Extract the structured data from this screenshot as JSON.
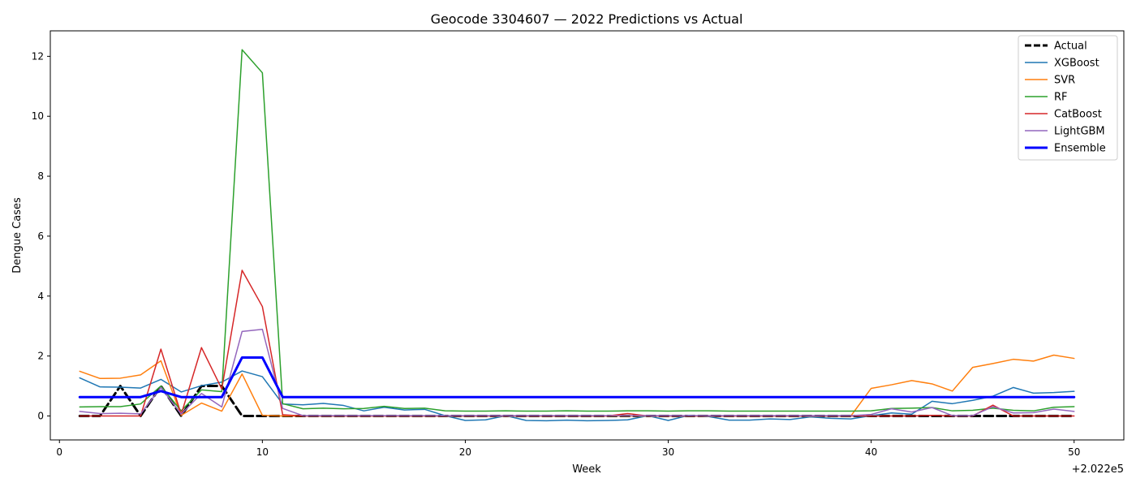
{
  "chart_data": {
    "type": "line",
    "title": "Geocode 3304607 — 2022 Predictions vs Actual",
    "xlabel": "Week",
    "ylabel": "Dengue Cases",
    "xlim": [
      -0.45,
      52.45
    ],
    "ylim": [
      -0.8,
      12.85
    ],
    "x_offset_label": "+2.022e5",
    "x_ticks": [
      0,
      10,
      20,
      30,
      40,
      50
    ],
    "y_ticks": [
      0,
      2,
      4,
      6,
      8,
      10,
      12
    ],
    "legend_position": "top-right",
    "grid": false,
    "x": [
      1,
      2,
      3,
      4,
      5,
      6,
      7,
      8,
      9,
      10,
      11,
      12,
      13,
      14,
      15,
      16,
      17,
      18,
      19,
      20,
      21,
      22,
      23,
      24,
      25,
      26,
      27,
      28,
      29,
      30,
      31,
      32,
      33,
      34,
      35,
      36,
      37,
      38,
      39,
      40,
      41,
      42,
      43,
      44,
      45,
      46,
      47,
      48,
      49,
      50
    ],
    "series": [
      {
        "name": "Actual",
        "color": "#000000",
        "style": "dashed",
        "width": 3,
        "values": [
          0,
          0,
          1,
          0,
          1,
          0,
          1,
          1,
          0,
          0,
          0,
          0,
          0,
          0,
          0,
          0,
          0,
          0,
          0,
          0,
          0,
          0,
          0,
          0,
          0,
          0,
          0,
          0,
          0,
          0,
          0,
          0,
          0,
          0,
          0,
          0,
          0,
          0,
          0,
          0,
          0,
          0,
          0,
          0,
          0,
          0,
          0,
          0,
          0,
          0
        ]
      },
      {
        "name": "XGBoost",
        "color": "#1f77b4",
        "style": "solid",
        "width": 1.5,
        "values": [
          1.27,
          0.97,
          0.96,
          0.93,
          1.22,
          0.8,
          1.01,
          1.13,
          1.5,
          1.31,
          0.4,
          0.37,
          0.42,
          0.35,
          0.17,
          0.29,
          0.2,
          0.22,
          0.01,
          -0.15,
          -0.13,
          0.01,
          -0.15,
          -0.16,
          -0.14,
          -0.16,
          -0.15,
          -0.13,
          0.01,
          -0.15,
          0.02,
          -0.02,
          -0.14,
          -0.14,
          -0.1,
          -0.12,
          -0.03,
          -0.08,
          -0.1,
          0.01,
          0.1,
          0.06,
          0.49,
          0.41,
          0.52,
          0.66,
          0.95,
          0.76,
          0.78,
          0.82
        ]
      },
      {
        "name": "SVR",
        "color": "#ff7f0e",
        "style": "solid",
        "width": 1.5,
        "values": [
          1.49,
          1.25,
          1.26,
          1.37,
          1.84,
          0.02,
          0.43,
          0.16,
          1.4,
          0.02,
          0.0,
          0.0,
          0.0,
          0.0,
          0.0,
          0.0,
          0.0,
          0.0,
          0.0,
          0.0,
          0.0,
          0.0,
          0.0,
          0.0,
          0.0,
          0.0,
          0.0,
          0.0,
          0.0,
          0.0,
          0.0,
          0.0,
          0.0,
          0.0,
          0.0,
          0.0,
          0.0,
          0.0,
          0.0,
          0.92,
          1.04,
          1.18,
          1.07,
          0.83,
          1.62,
          1.75,
          1.89,
          1.83,
          2.03,
          1.92
        ]
      },
      {
        "name": "RF",
        "color": "#2ca02c",
        "style": "solid",
        "width": 1.5,
        "values": [
          0.3,
          0.31,
          0.31,
          0.4,
          1.0,
          0.17,
          0.87,
          0.81,
          12.22,
          11.45,
          0.41,
          0.24,
          0.26,
          0.24,
          0.25,
          0.32,
          0.25,
          0.26,
          0.17,
          0.16,
          0.16,
          0.17,
          0.16,
          0.16,
          0.17,
          0.16,
          0.16,
          0.17,
          0.17,
          0.16,
          0.17,
          0.17,
          0.16,
          0.16,
          0.16,
          0.16,
          0.16,
          0.16,
          0.16,
          0.17,
          0.25,
          0.26,
          0.28,
          0.17,
          0.19,
          0.26,
          0.19,
          0.17,
          0.29,
          0.31
        ]
      },
      {
        "name": "CatBoost",
        "color": "#d62728",
        "style": "solid",
        "width": 1.5,
        "values": [
          0.0,
          0.0,
          0.0,
          0.0,
          2.23,
          0.05,
          2.28,
          0.9,
          4.86,
          3.65,
          0.04,
          0.0,
          0.0,
          0.0,
          0.0,
          0.0,
          0.0,
          0.0,
          0.0,
          0.0,
          0.0,
          0.0,
          0.0,
          0.0,
          0.0,
          0.0,
          0.0,
          0.08,
          0.0,
          0.0,
          0.0,
          0.0,
          0.0,
          0.0,
          0.0,
          0.0,
          0.0,
          0.0,
          0.0,
          0.0,
          0.0,
          0.0,
          0.02,
          0.0,
          0.0,
          0.36,
          0.0,
          0.0,
          0.0,
          0.0
        ]
      },
      {
        "name": "LightGBM",
        "color": "#9467bd",
        "style": "solid",
        "width": 1.5,
        "values": [
          0.15,
          0.08,
          0.09,
          0.07,
          0.95,
          0.06,
          0.75,
          0.3,
          2.82,
          2.89,
          0.25,
          0.01,
          0.01,
          0.01,
          0.01,
          0.01,
          0.01,
          0.01,
          0.01,
          0.01,
          0.01,
          0.01,
          0.01,
          0.01,
          0.01,
          0.01,
          0.01,
          0.01,
          0.01,
          0.01,
          0.01,
          0.01,
          0.01,
          0.01,
          0.01,
          0.01,
          0.01,
          0.01,
          0.01,
          0.05,
          0.24,
          0.13,
          0.28,
          0.01,
          0.01,
          0.31,
          0.1,
          0.11,
          0.23,
          0.15
        ]
      },
      {
        "name": "Ensemble",
        "color": "#0000ff",
        "style": "solid",
        "width": 3,
        "values": [
          0.63,
          0.63,
          0.63,
          0.63,
          0.83,
          0.63,
          0.63,
          0.63,
          1.95,
          1.95,
          0.63,
          0.63,
          0.63,
          0.63,
          0.63,
          0.63,
          0.63,
          0.63,
          0.63,
          0.63,
          0.63,
          0.63,
          0.63,
          0.63,
          0.63,
          0.63,
          0.63,
          0.63,
          0.63,
          0.63,
          0.63,
          0.63,
          0.63,
          0.63,
          0.63,
          0.63,
          0.63,
          0.63,
          0.63,
          0.63,
          0.63,
          0.63,
          0.63,
          0.63,
          0.63,
          0.63,
          0.63,
          0.63,
          0.63,
          0.63
        ]
      }
    ]
  }
}
